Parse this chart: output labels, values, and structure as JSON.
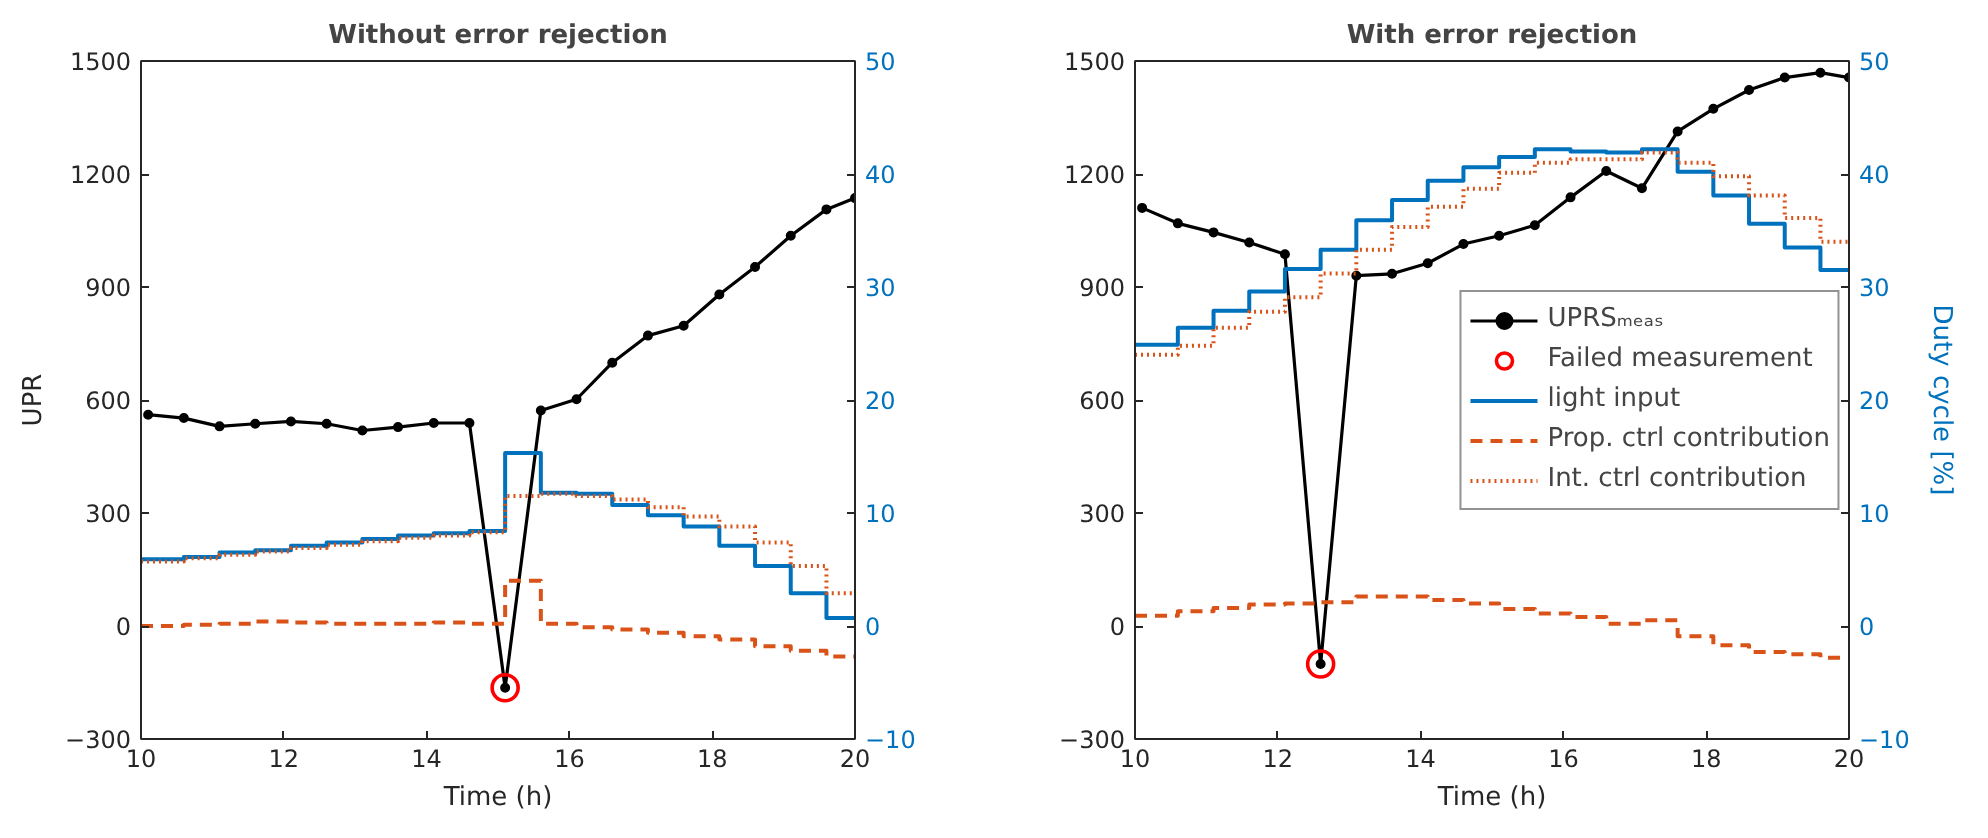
{
  "chart_data": [
    {
      "type": "line",
      "title": "Without error rejection",
      "xlabel": "Time (h)",
      "ylabel": "UPR",
      "xlim": [
        10,
        20
      ],
      "xticks": [
        10,
        12,
        14,
        16,
        18,
        20
      ],
      "ylim": [
        -300,
        1500
      ],
      "yticks": [
        -300,
        0,
        300,
        600,
        900,
        1200,
        1500
      ],
      "y2lim": [
        -10,
        50
      ],
      "y2ticks": [
        -10,
        0,
        10,
        20,
        30,
        40,
        50
      ],
      "grid": false,
      "legend": false,
      "series": [
        {
          "marker": "circle",
          "color": "#000000",
          "x": [
            10.1,
            10.6,
            11.1,
            11.6,
            12.1,
            12.6,
            13.1,
            13.6,
            14.1,
            14.6,
            15.1,
            15.6,
            16.1,
            16.6,
            17.1,
            17.6,
            18.1,
            18.6,
            19.1,
            19.6,
            20
          ],
          "values": [
            561,
            552,
            530,
            537,
            543,
            537,
            519,
            528,
            539,
            539,
            -164,
            572,
            602,
            699,
            771,
            797,
            880,
            953,
            1036,
            1106,
            1136
          ]
        },
        {
          "type": "scatter",
          "marker": "circle",
          "color": "#ff0000",
          "x": [
            15.1
          ],
          "values": [
            -164
          ]
        },
        {
          "type": "step",
          "axis": "y2",
          "line_style": "solid",
          "color": "#0072bd",
          "x": [
            10,
            10.6,
            11.1,
            11.6,
            12.1,
            12.6,
            13.1,
            13.6,
            14.1,
            14.6,
            15.1,
            15.6,
            16.1,
            16.6,
            17.1,
            17.6,
            18.1,
            18.6,
            19.1,
            19.6,
            20
          ],
          "values": [
            5.9,
            6.1,
            6.5,
            6.7,
            7.1,
            7.4,
            7.7,
            8.0,
            8.2,
            8.4,
            15.3,
            11.8,
            11.7,
            10.7,
            9.8,
            8.8,
            7.1,
            5.3,
            2.9,
            0.7,
            0.7
          ]
        },
        {
          "type": "step",
          "axis": "y2",
          "line_style": "dashed",
          "color": "#d95319",
          "x": [
            10,
            10.6,
            11.1,
            11.6,
            12.1,
            12.6,
            13.1,
            13.6,
            14.1,
            14.6,
            15.1,
            15.6,
            16.1,
            16.6,
            17.1,
            17.6,
            18.1,
            18.6,
            19.1,
            19.6,
            20
          ],
          "values": [
            0.0,
            0.1,
            0.2,
            0.4,
            0.3,
            0.2,
            0.2,
            0.2,
            0.3,
            0.2,
            4.0,
            0.2,
            -0.1,
            -0.3,
            -0.6,
            -0.9,
            -1.2,
            -1.8,
            -2.2,
            -2.7,
            -2.7
          ]
        },
        {
          "type": "step",
          "axis": "y2",
          "line_style": "dotted",
          "color": "#d95319",
          "x": [
            10,
            10.6,
            11.1,
            11.6,
            12.1,
            12.6,
            13.1,
            13.6,
            14.1,
            14.6,
            15.1,
            15.6,
            16.1,
            16.6,
            17.1,
            17.6,
            18.1,
            18.6,
            19.1,
            19.6,
            20
          ],
          "values": [
            5.7,
            6.0,
            6.3,
            6.6,
            6.9,
            7.2,
            7.5,
            7.8,
            8.0,
            8.3,
            11.5,
            11.7,
            11.5,
            11.2,
            10.5,
            9.7,
            8.8,
            7.4,
            5.3,
            2.9,
            2.9
          ]
        }
      ]
    },
    {
      "type": "line",
      "title": "With error rejection",
      "xlabel": "Time (h)",
      "y2label": "Duty cycle [%]",
      "xlim": [
        10,
        20
      ],
      "xticks": [
        10,
        12,
        14,
        16,
        18,
        20
      ],
      "ylim": [
        -300,
        1500
      ],
      "yticks": [
        -300,
        0,
        300,
        600,
        900,
        1200,
        1500
      ],
      "y2lim": [
        -10,
        50
      ],
      "y2ticks": [
        -10,
        0,
        10,
        20,
        30,
        40,
        50
      ],
      "grid": false,
      "legend": "right",
      "series": [
        {
          "name": "UPRSₘₑₐₛ",
          "marker": "circle",
          "color": "#000000",
          "x": [
            10.1,
            10.6,
            11.1,
            11.6,
            12.1,
            12.6,
            13.1,
            13.6,
            14.1,
            14.6,
            15.1,
            15.6,
            16.1,
            16.6,
            17.1,
            17.6,
            18.1,
            18.6,
            19.1,
            19.6,
            20
          ],
          "values": [
            1110,
            1069,
            1045,
            1018,
            987,
            -101,
            930,
            935,
            963,
            1014,
            1036,
            1064,
            1138,
            1208,
            1162,
            1313,
            1373,
            1423,
            1456,
            1469,
            1456
          ]
        },
        {
          "name": "Failed measurement",
          "type": "scatter",
          "marker": "circle",
          "color": "#ff0000",
          "x": [
            12.6
          ],
          "values": [
            -101
          ]
        },
        {
          "name": "light input",
          "type": "step",
          "axis": "y2",
          "line_style": "solid",
          "color": "#0072bd",
          "x": [
            10,
            10.6,
            11.1,
            11.6,
            12.1,
            12.6,
            13.1,
            13.6,
            14.1,
            14.6,
            15.1,
            15.6,
            16.1,
            16.6,
            17.1,
            17.6,
            18.1,
            18.6,
            19.1,
            19.6,
            20
          ],
          "values": [
            24.9,
            26.4,
            27.9,
            29.6,
            31.6,
            33.3,
            35.9,
            37.7,
            39.4,
            40.6,
            41.5,
            42.2,
            42.0,
            41.9,
            42.2,
            40.2,
            38.1,
            35.6,
            33.5,
            31.5,
            31.5
          ]
        },
        {
          "name": "Prop. ctrl contribution",
          "type": "step",
          "axis": "y2",
          "line_style": "dashed",
          "color": "#d95319",
          "x": [
            10,
            10.6,
            11.1,
            11.6,
            12.1,
            12.6,
            13.1,
            13.6,
            14.1,
            14.6,
            15.1,
            15.6,
            16.1,
            16.6,
            17.1,
            17.6,
            18.1,
            18.6,
            19.1,
            19.6,
            20
          ],
          "values": [
            0.9,
            1.3,
            1.6,
            1.9,
            2.0,
            2.1,
            2.6,
            2.6,
            2.3,
            2.0,
            1.5,
            1.1,
            0.8,
            0.2,
            0.5,
            -0.9,
            -1.7,
            -2.3,
            -2.5,
            -2.8,
            -2.8
          ]
        },
        {
          "name": "Int. ctrl contribution",
          "type": "step",
          "axis": "y2",
          "line_style": "dotted",
          "color": "#d95319",
          "x": [
            10,
            10.6,
            11.1,
            11.6,
            12.1,
            12.6,
            13.1,
            13.6,
            14.1,
            14.6,
            15.1,
            15.6,
            16.1,
            16.6,
            17.1,
            17.6,
            18.1,
            18.6,
            19.1,
            19.6,
            20
          ],
          "values": [
            24.0,
            24.8,
            26.4,
            27.8,
            29.1,
            31.2,
            33.3,
            35.3,
            37.1,
            38.7,
            40.1,
            41.0,
            41.3,
            41.3,
            41.9,
            41.0,
            39.8,
            38.1,
            36.1,
            34.0,
            34.0
          ]
        }
      ]
    }
  ]
}
